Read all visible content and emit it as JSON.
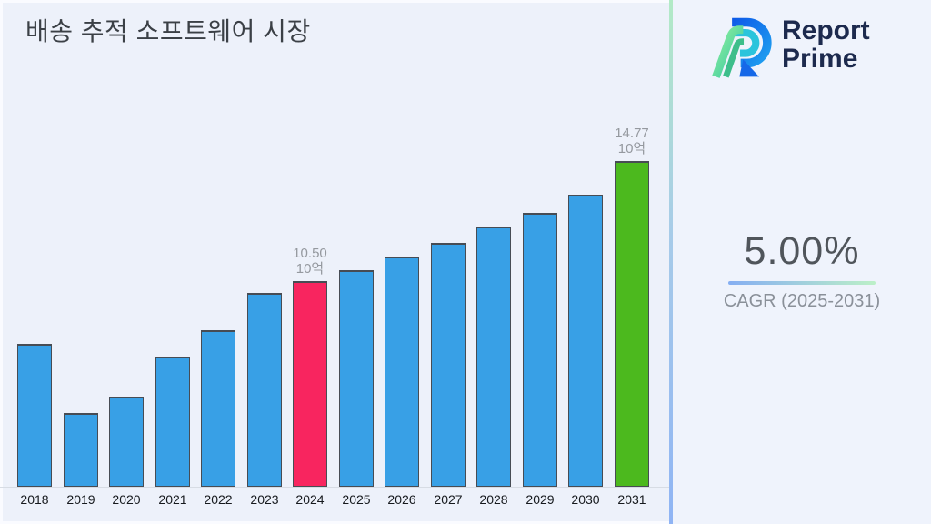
{
  "header": {
    "title": "배송 추적 소프트웨어 시장"
  },
  "brand": {
    "name_line1": "Report",
    "name_line2": "Prime",
    "text_color": "#1D2A4E"
  },
  "stats_panel": {
    "cagr_value": "5.00%",
    "cagr_label": "CAGR (2025-2031)",
    "underline_gradient": [
      "#85AEF2",
      "#BCF0C8"
    ]
  },
  "divider": {
    "gradient": [
      "#B2EAC6",
      "#A7CBE9",
      "#8FB4F4"
    ]
  },
  "chart_data": {
    "type": "bar",
    "title": "배송 추적 소프트웨어 시장",
    "categories": [
      "2018",
      "2019",
      "2020",
      "2021",
      "2022",
      "2023",
      "2024",
      "2025",
      "2026",
      "2027",
      "2028",
      "2029",
      "2030",
      "2031"
    ],
    "values": [
      8.27,
      5.81,
      6.4,
      7.81,
      8.75,
      10.09,
      10.5,
      10.9,
      11.37,
      11.87,
      12.44,
      12.93,
      13.58,
      14.77
    ],
    "unit": "10억",
    "data_labels": {
      "2024": {
        "value": "10.50",
        "unit": "10억"
      },
      "2031": {
        "value": "14.77",
        "unit": "10억"
      }
    },
    "colors": {
      "default": "#38A0E6",
      "2024": "#F8255F",
      "2031": "#4CB91E",
      "bar_border": "#474C54"
    },
    "xlabel": "",
    "ylabel": "",
    "ylim": [
      3.19,
      16.2
    ],
    "grid": false,
    "legend": false
  }
}
